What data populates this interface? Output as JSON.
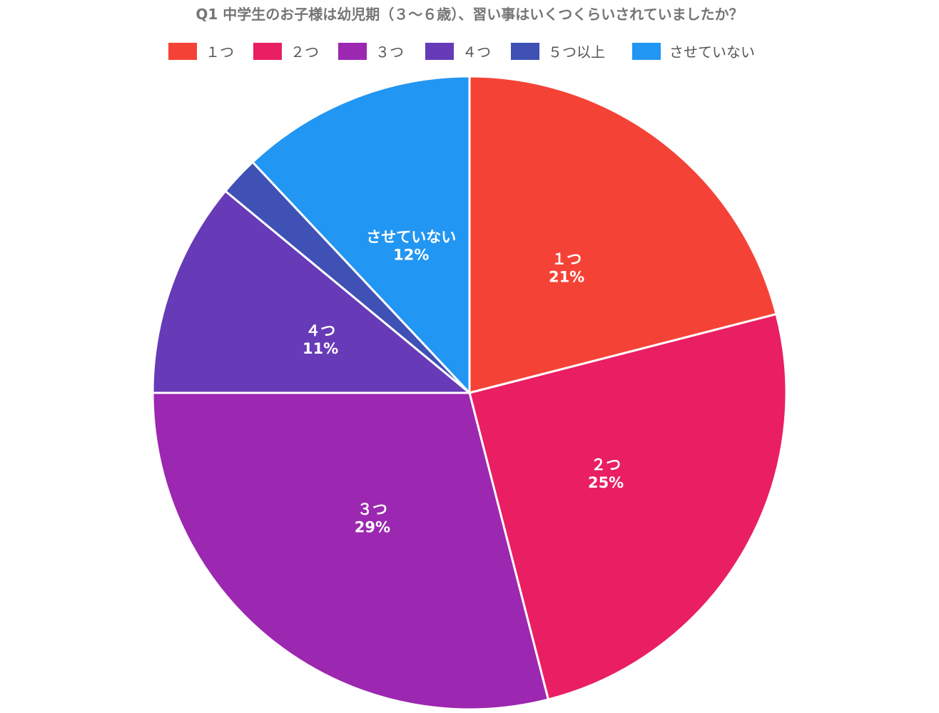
{
  "chart_data": {
    "type": "pie",
    "title": "Q1 中学生のお子様は幼児期（３〜６歳）、習い事はいくつくらいされていましたか？",
    "legend_position": "top",
    "slices": [
      {
        "label": "１つ",
        "value": 21,
        "value_label": "21%",
        "color": "#F44336"
      },
      {
        "label": "２つ",
        "value": 25,
        "value_label": "25%",
        "color": "#E91E63"
      },
      {
        "label": "３つ",
        "value": 29,
        "value_label": "29%",
        "color": "#9C27B0"
      },
      {
        "label": "４つ",
        "value": 11,
        "value_label": "11%",
        "color": "#673AB7"
      },
      {
        "label": "５つ以上",
        "value": 2,
        "value_label": "",
        "color": "#3F51B5"
      },
      {
        "label": "させていない",
        "value": 12,
        "value_label": "12%",
        "color": "#2196F3"
      }
    ]
  }
}
